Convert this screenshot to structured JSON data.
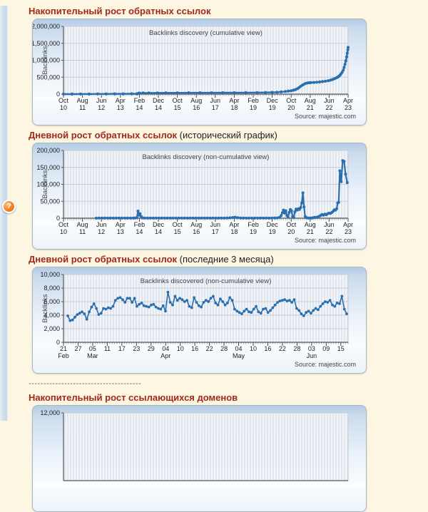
{
  "page": {
    "background": "#fcf6e3",
    "heading_color": "#a3281c"
  },
  "help_icon": {
    "glyph": "?"
  },
  "separator": "--------------------------------------",
  "sections": [
    {
      "title_bold": "Накопительный рост обратных ссылок",
      "title_normal": ""
    },
    {
      "title_bold": "Дневной рост обратных ссылок",
      "title_normal": " (исторический график)"
    },
    {
      "title_bold": "Дневной рост обратных ссылок",
      "title_normal": " (последние 3 месяца)"
    },
    {
      "title_bold": "Накопительный рост ссылающихся доменов",
      "title_normal": ""
    }
  ],
  "chart_data": [
    {
      "type": "line",
      "title": "Backlinks discovery (cumulative view)",
      "ylabel": "Backlinks",
      "xlabel": "",
      "source": "Source: majestic.com",
      "color": "#2a6fad",
      "grid": true,
      "ylim": [
        0,
        2000000
      ],
      "yticks": [
        {
          "v": 0,
          "label": "0"
        },
        {
          "v": 500000,
          "label": "500,000"
        },
        {
          "v": 1000000,
          "label": "1,000,000"
        },
        {
          "v": 1500000,
          "label": "1,500,000"
        },
        {
          "v": 2000000,
          "label": "2,000,000"
        }
      ],
      "xticks": [
        {
          "x": 0.0,
          "l1": "Oct",
          "l2": "10"
        },
        {
          "x": 0.0667,
          "l1": "Aug",
          "l2": "11"
        },
        {
          "x": 0.1333,
          "l1": "Jun",
          "l2": "12"
        },
        {
          "x": 0.2,
          "l1": "Apr",
          "l2": "13"
        },
        {
          "x": 0.2667,
          "l1": "Feb",
          "l2": "14"
        },
        {
          "x": 0.3333,
          "l1": "Dec",
          "l2": "14"
        },
        {
          "x": 0.4,
          "l1": "Oct",
          "l2": "15"
        },
        {
          "x": 0.4667,
          "l1": "Aug",
          "l2": "16"
        },
        {
          "x": 0.5333,
          "l1": "Jun",
          "l2": "17"
        },
        {
          "x": 0.6,
          "l1": "Apr",
          "l2": "18"
        },
        {
          "x": 0.6667,
          "l1": "Feb",
          "l2": "19"
        },
        {
          "x": 0.7333,
          "l1": "Dec",
          "l2": "19"
        },
        {
          "x": 0.8,
          "l1": "Oct",
          "l2": "20"
        },
        {
          "x": 0.8667,
          "l1": "Aug",
          "l2": "21"
        },
        {
          "x": 0.9333,
          "l1": "Jun",
          "l2": "22"
        },
        {
          "x": 1.0,
          "l1": "Apr",
          "l2": "23"
        }
      ],
      "minor_ticks": 150,
      "line_w": 2.4,
      "dot_r": 2.1,
      "points": [
        [
          0,
          2000
        ],
        [
          0.03,
          3000
        ],
        [
          0.06,
          4000
        ],
        [
          0.09,
          5000
        ],
        [
          0.12,
          6000
        ],
        [
          0.15,
          7000
        ],
        [
          0.18,
          8000
        ],
        [
          0.21,
          9000
        ],
        [
          0.24,
          10000
        ],
        [
          0.258,
          11000
        ],
        [
          0.263,
          20000
        ],
        [
          0.267,
          32000
        ],
        [
          0.28,
          34000
        ],
        [
          0.3,
          35000
        ],
        [
          0.33,
          36000
        ],
        [
          0.36,
          37000
        ],
        [
          0.4,
          38000
        ],
        [
          0.44,
          39000
        ],
        [
          0.48,
          40000
        ],
        [
          0.52,
          41000
        ],
        [
          0.56,
          42000
        ],
        [
          0.6,
          43000
        ],
        [
          0.64,
          45000
        ],
        [
          0.68,
          47000
        ],
        [
          0.71,
          49000
        ],
        [
          0.733,
          52000
        ],
        [
          0.75,
          57000
        ],
        [
          0.765,
          65000
        ],
        [
          0.78,
          78000
        ],
        [
          0.79,
          90000
        ],
        [
          0.8,
          100000
        ],
        [
          0.808,
          115000
        ],
        [
          0.815,
          135000
        ],
        [
          0.822,
          160000
        ],
        [
          0.828,
          195000
        ],
        [
          0.834,
          235000
        ],
        [
          0.84,
          270000
        ],
        [
          0.846,
          300000
        ],
        [
          0.852,
          320000
        ],
        [
          0.858,
          331000
        ],
        [
          0.864,
          336000
        ],
        [
          0.87,
          340000
        ],
        [
          0.88,
          346000
        ],
        [
          0.89,
          352000
        ],
        [
          0.9,
          360000
        ],
        [
          0.91,
          370000
        ],
        [
          0.92,
          382000
        ],
        [
          0.93,
          396000
        ],
        [
          0.938,
          412000
        ],
        [
          0.945,
          432000
        ],
        [
          0.952,
          455000
        ],
        [
          0.958,
          478000
        ],
        [
          0.963,
          500000
        ],
        [
          0.967,
          525000
        ],
        [
          0.971,
          555000
        ],
        [
          0.975,
          595000
        ],
        [
          0.979,
          645000
        ],
        [
          0.983,
          710000
        ],
        [
          0.986,
          790000
        ],
        [
          0.989,
          880000
        ],
        [
          0.992,
          980000
        ],
        [
          0.995,
          1100000
        ],
        [
          0.997,
          1210000
        ],
        [
          0.999,
          1310000
        ],
        [
          1.0,
          1380000
        ]
      ]
    },
    {
      "type": "line",
      "title": "Backlinks discovery (non-cumulative view)",
      "ylabel": "Backlinks",
      "xlabel": "",
      "source": "Source: majestic.com",
      "color": "#2a6fad",
      "grid": true,
      "ylim": [
        0,
        200000
      ],
      "yticks": [
        {
          "v": 0,
          "label": "0"
        },
        {
          "v": 50000,
          "label": "50,000"
        },
        {
          "v": 100000,
          "label": "100,000"
        },
        {
          "v": 150000,
          "label": "150,000"
        },
        {
          "v": 200000,
          "label": "200,000"
        }
      ],
      "xticks": [
        {
          "x": 0.0,
          "l1": "Oct",
          "l2": "10"
        },
        {
          "x": 0.0667,
          "l1": "Aug",
          "l2": "11"
        },
        {
          "x": 0.1333,
          "l1": "Jun",
          "l2": "12"
        },
        {
          "x": 0.2,
          "l1": "Apr",
          "l2": "13"
        },
        {
          "x": 0.2667,
          "l1": "Feb",
          "l2": "14"
        },
        {
          "x": 0.3333,
          "l1": "Dec",
          "l2": "14"
        },
        {
          "x": 0.4,
          "l1": "Oct",
          "l2": "15"
        },
        {
          "x": 0.4667,
          "l1": "Aug",
          "l2": "16"
        },
        {
          "x": 0.5333,
          "l1": "Jun",
          "l2": "17"
        },
        {
          "x": 0.6,
          "l1": "Apr",
          "l2": "18"
        },
        {
          "x": 0.6667,
          "l1": "Feb",
          "l2": "19"
        },
        {
          "x": 0.7333,
          "l1": "Dec",
          "l2": "19"
        },
        {
          "x": 0.8,
          "l1": "Oct",
          "l2": "20"
        },
        {
          "x": 0.8667,
          "l1": "Aug",
          "l2": "21"
        },
        {
          "x": 0.9333,
          "l1": "Jun",
          "l2": "22"
        },
        {
          "x": 1.0,
          "l1": "Apr",
          "l2": "23"
        }
      ],
      "minor_ticks": 150,
      "line_w": 2.2,
      "dot_r": 2.0,
      "points": [
        [
          0.115,
          300
        ],
        [
          0.125,
          450
        ],
        [
          0.135,
          350
        ],
        [
          0.145,
          450
        ],
        [
          0.155,
          350
        ],
        [
          0.165,
          450
        ],
        [
          0.175,
          350
        ],
        [
          0.185,
          450
        ],
        [
          0.195,
          350
        ],
        [
          0.205,
          450
        ],
        [
          0.215,
          350
        ],
        [
          0.225,
          450
        ],
        [
          0.235,
          350
        ],
        [
          0.245,
          500
        ],
        [
          0.252,
          800
        ],
        [
          0.258,
          1500
        ],
        [
          0.262,
          21000
        ],
        [
          0.2655,
          9000
        ],
        [
          0.269,
          13500
        ],
        [
          0.273,
          5000
        ],
        [
          0.277,
          1200
        ],
        [
          0.285,
          600
        ],
        [
          0.295,
          450
        ],
        [
          0.305,
          400
        ],
        [
          0.315,
          450
        ],
        [
          0.325,
          400
        ],
        [
          0.335,
          450
        ],
        [
          0.345,
          400
        ],
        [
          0.355,
          450
        ],
        [
          0.365,
          400
        ],
        [
          0.375,
          450
        ],
        [
          0.385,
          400
        ],
        [
          0.395,
          450
        ],
        [
          0.405,
          400
        ],
        [
          0.415,
          450
        ],
        [
          0.425,
          400
        ],
        [
          0.435,
          450
        ],
        [
          0.445,
          400
        ],
        [
          0.455,
          450
        ],
        [
          0.465,
          400
        ],
        [
          0.475,
          450
        ],
        [
          0.485,
          400
        ],
        [
          0.495,
          450
        ],
        [
          0.505,
          400
        ],
        [
          0.515,
          450
        ],
        [
          0.525,
          400
        ],
        [
          0.535,
          450
        ],
        [
          0.545,
          500
        ],
        [
          0.555,
          600
        ],
        [
          0.565,
          700
        ],
        [
          0.575,
          900
        ],
        [
          0.585,
          1300
        ],
        [
          0.595,
          2200
        ],
        [
          0.603,
          2900
        ],
        [
          0.612,
          1600
        ],
        [
          0.622,
          800
        ],
        [
          0.632,
          500
        ],
        [
          0.642,
          450
        ],
        [
          0.652,
          500
        ],
        [
          0.662,
          450
        ],
        [
          0.672,
          500
        ],
        [
          0.682,
          450
        ],
        [
          0.692,
          500
        ],
        [
          0.702,
          450
        ],
        [
          0.712,
          500
        ],
        [
          0.722,
          550
        ],
        [
          0.732,
          650
        ],
        [
          0.742,
          800
        ],
        [
          0.752,
          1100
        ],
        [
          0.76,
          2500
        ],
        [
          0.765,
          8000
        ],
        [
          0.769,
          16000
        ],
        [
          0.773,
          24000
        ],
        [
          0.777,
          15000
        ],
        [
          0.781,
          22000
        ],
        [
          0.785,
          8000
        ],
        [
          0.789,
          3000
        ],
        [
          0.793,
          17000
        ],
        [
          0.797,
          26000
        ],
        [
          0.801,
          22000
        ],
        [
          0.805,
          4500
        ],
        [
          0.809,
          2000
        ],
        [
          0.813,
          19000
        ],
        [
          0.817,
          27000
        ],
        [
          0.821,
          24000
        ],
        [
          0.825,
          28000
        ],
        [
          0.829,
          26000
        ],
        [
          0.833,
          31000
        ],
        [
          0.837,
          45000
        ],
        [
          0.841,
          75000
        ],
        [
          0.845,
          33000
        ],
        [
          0.849,
          5000
        ],
        [
          0.853,
          1500
        ],
        [
          0.858,
          900
        ],
        [
          0.863,
          600
        ],
        [
          0.868,
          500
        ],
        [
          0.873,
          800
        ],
        [
          0.878,
          1500
        ],
        [
          0.883,
          2500
        ],
        [
          0.888,
          2000
        ],
        [
          0.893,
          3500
        ],
        [
          0.898,
          5500
        ],
        [
          0.903,
          8000
        ],
        [
          0.908,
          11000
        ],
        [
          0.913,
          9000
        ],
        [
          0.918,
          12000
        ],
        [
          0.923,
          10000
        ],
        [
          0.928,
          13000
        ],
        [
          0.933,
          15000
        ],
        [
          0.938,
          14000
        ],
        [
          0.943,
          17000
        ],
        [
          0.948,
          21000
        ],
        [
          0.952,
          25000
        ],
        [
          0.956,
          24000
        ],
        [
          0.96,
          28000
        ],
        [
          0.9635,
          45000
        ],
        [
          0.967,
          47000
        ],
        [
          0.971,
          140000
        ],
        [
          0.976,
          108000
        ],
        [
          0.981,
          170000
        ],
        [
          0.986,
          168000
        ],
        [
          0.991,
          130000
        ],
        [
          0.997,
          105000
        ]
      ]
    },
    {
      "type": "line",
      "title": "Backlinks discovered (non-cumulative view)",
      "ylabel": "Backlinks",
      "xlabel": "",
      "source": "Source: majestic.com",
      "color": "#2a6fad",
      "grid": true,
      "ylim": [
        0,
        10000
      ],
      "yticks": [
        {
          "v": 0,
          "label": "0"
        },
        {
          "v": 2000,
          "label": "2,000"
        },
        {
          "v": 4000,
          "label": "4,000"
        },
        {
          "v": 6000,
          "label": "6,000"
        },
        {
          "v": 8000,
          "label": "8,000"
        },
        {
          "v": 10000,
          "label": "10,000"
        }
      ],
      "xticks": [
        {
          "x": 0.0,
          "l1": "21",
          "l2": "Feb"
        },
        {
          "x": 0.0513,
          "l1": "27",
          "l2": ""
        },
        {
          "x": 0.1026,
          "l1": "05",
          "l2": "Mar"
        },
        {
          "x": 0.1538,
          "l1": "11",
          "l2": ""
        },
        {
          "x": 0.2051,
          "l1": "17",
          "l2": ""
        },
        {
          "x": 0.2564,
          "l1": "23",
          "l2": ""
        },
        {
          "x": 0.3077,
          "l1": "29",
          "l2": ""
        },
        {
          "x": 0.359,
          "l1": "04",
          "l2": "Apr"
        },
        {
          "x": 0.4103,
          "l1": "10",
          "l2": ""
        },
        {
          "x": 0.4615,
          "l1": "16",
          "l2": ""
        },
        {
          "x": 0.5128,
          "l1": "22",
          "l2": ""
        },
        {
          "x": 0.5641,
          "l1": "28",
          "l2": ""
        },
        {
          "x": 0.6154,
          "l1": "04",
          "l2": "May"
        },
        {
          "x": 0.6667,
          "l1": "10",
          "l2": ""
        },
        {
          "x": 0.7179,
          "l1": "16",
          "l2": ""
        },
        {
          "x": 0.7692,
          "l1": "22",
          "l2": ""
        },
        {
          "x": 0.8205,
          "l1": "28",
          "l2": ""
        },
        {
          "x": 0.8718,
          "l1": "03",
          "l2": "Jun"
        },
        {
          "x": 0.9231,
          "l1": "09",
          "l2": ""
        },
        {
          "x": 0.9744,
          "l1": "15",
          "l2": ""
        }
      ],
      "minor_ticks": 117,
      "line_w": 1.6,
      "dot_r": 1.9,
      "x_start": 0.015,
      "x_end": 0.995,
      "values": [
        3900,
        3200,
        3300,
        3700,
        4100,
        4300,
        4500,
        4200,
        3400,
        4500,
        5200,
        5700,
        5000,
        4100,
        4300,
        5000,
        4900,
        5100,
        5000,
        5300,
        6200,
        6500,
        6600,
        6300,
        5900,
        6500,
        6500,
        5900,
        6500,
        5300,
        5600,
        5800,
        5400,
        5300,
        5200,
        5500,
        5600,
        5200,
        5000,
        4900,
        5400,
        4600,
        7400,
        5900,
        5500,
        6800,
        6200,
        6500,
        6300,
        6000,
        6200,
        5300,
        5100,
        6600,
        5900,
        5400,
        5200,
        5900,
        6200,
        6000,
        6500,
        6800,
        5800,
        5500,
        6400,
        6000,
        5500,
        5800,
        6600,
        6200,
        4900,
        4600,
        4400,
        4200,
        4600,
        4900,
        4500,
        4400,
        4900,
        5300,
        4500,
        4300,
        4900,
        5000,
        4400,
        4700,
        5100,
        5500,
        5900,
        6100,
        6200,
        6300,
        6100,
        6200,
        5900,
        6300,
        5000,
        4700,
        4200,
        3900,
        4400,
        4600,
        4300,
        4700,
        5000,
        4800,
        5300,
        5700,
        6000,
        5900,
        6200,
        5500,
        5300,
        5800,
        5700,
        6800,
        4900,
        4200
      ]
    },
    {
      "type": "line",
      "title": "",
      "ylabel": "",
      "xlabel": "",
      "source": "",
      "color": "#2a6fad",
      "grid": true,
      "ylim": [
        0,
        12000
      ],
      "yticks": [
        {
          "v": 12000,
          "label": "12,000"
        }
      ],
      "xticks": [],
      "minor_ticks": 0,
      "points": []
    }
  ]
}
